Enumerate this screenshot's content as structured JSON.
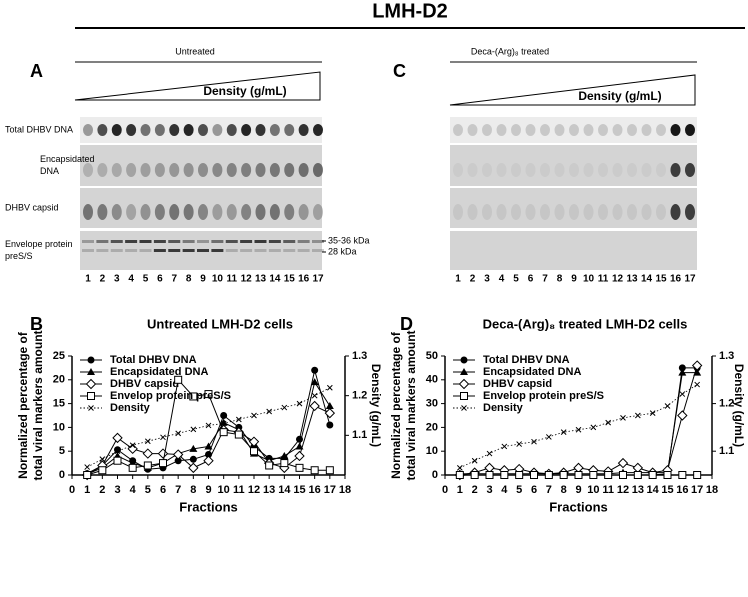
{
  "title": "LMH-D2",
  "blots": [
    {
      "panel": "A",
      "title": "Untreated",
      "wedge_label": "Density (g/mL)",
      "rows": [
        [
          "Total DHBV DNA"
        ],
        [
          "Encapsidated",
          "DNA"
        ],
        [
          "DHBV capsid"
        ],
        [
          "Envelope protein",
          "preS/S"
        ]
      ],
      "size_markers": [
        "35-36 kDa",
        "28 kDa"
      ],
      "lanes": [
        1,
        2,
        3,
        4,
        5,
        6,
        7,
        8,
        9,
        10,
        11,
        12,
        13,
        14,
        15,
        16,
        17
      ]
    },
    {
      "panel": "C",
      "title": "Deca-(Arg)₈ treated",
      "wedge_label": "Density (g/mL)",
      "lanes": [
        1,
        2,
        3,
        4,
        5,
        6,
        7,
        8,
        9,
        10,
        11,
        12,
        13,
        14,
        15,
        16,
        17
      ]
    }
  ],
  "chart_data": [
    {
      "type": "line",
      "panel": "B",
      "title": "Untreated LMH-D2 cells",
      "xlabel": "Fractions",
      "ylabel": [
        "Normalized percentage of",
        "total viral markers amount"
      ],
      "y2label": "Density (g/mL)",
      "x": [
        1,
        2,
        3,
        4,
        5,
        6,
        7,
        8,
        9,
        10,
        11,
        12,
        13,
        14,
        15,
        16,
        17
      ],
      "xlim": [
        0,
        18
      ],
      "xticks": [
        0,
        1,
        2,
        3,
        4,
        5,
        6,
        7,
        8,
        9,
        10,
        11,
        12,
        13,
        14,
        15,
        16,
        17,
        18
      ],
      "ylim": [
        0,
        25
      ],
      "yticks": [
        0,
        5,
        10,
        15,
        20,
        25
      ],
      "y2lim": [
        1.0,
        1.3
      ],
      "y2ticks": [
        1.1,
        1.2,
        1.3
      ],
      "legend": "upper left",
      "grid": false,
      "series": [
        {
          "name": "Total DHBV DNA",
          "color": "#000000",
          "marker": "circle",
          "dash": "solid",
          "values": [
            0.3,
            2,
            5.3,
            3,
            1.2,
            1.5,
            3,
            3.3,
            4.3,
            12.5,
            10,
            6,
            3.5,
            3.5,
            7.5,
            22,
            10.5
          ]
        },
        {
          "name": "Encapsidated DNA",
          "color": "#000000",
          "marker": "triangle",
          "dash": "solid",
          "values": [
            0.2,
            1.5,
            4,
            2.5,
            1.5,
            2.5,
            4.5,
            5.5,
            6,
            11,
            9.5,
            4.5,
            3,
            4,
            6,
            19.5,
            14.5
          ]
        },
        {
          "name": "DHBV capsid",
          "color": "#000000",
          "marker": "diamond",
          "dash": "solid",
          "values": [
            0,
            2,
            7.8,
            5.5,
            4.5,
            4.5,
            4.3,
            1.5,
            3,
            9.5,
            9,
            7,
            2.5,
            1.5,
            4,
            14.5,
            13
          ]
        },
        {
          "name": "Envelop protein preS/S",
          "color": "#000000",
          "marker": "square",
          "dash": "solid",
          "values": [
            0,
            1,
            3,
            1.5,
            2,
            2.5,
            20,
            16.5,
            17,
            9,
            8.5,
            5,
            2,
            2.5,
            1.5,
            1,
            1
          ]
        },
        {
          "name": "Density",
          "color": "#000000",
          "marker": "x",
          "dash": "dotted",
          "axis": "y2",
          "values": [
            1.02,
            1.04,
            1.06,
            1.075,
            1.085,
            1.095,
            1.105,
            1.115,
            1.125,
            1.13,
            1.14,
            1.15,
            1.16,
            1.17,
            1.18,
            1.2,
            1.22
          ]
        }
      ]
    },
    {
      "type": "line",
      "panel": "D",
      "title": "Deca-(Arg)₈ treated LMH-D2 cells",
      "xlabel": "Fractions",
      "ylabel": [
        "Normalized percentage of",
        "total viral markers amount"
      ],
      "y2label": "Density (g/mL)",
      "x": [
        1,
        2,
        3,
        4,
        5,
        6,
        7,
        8,
        9,
        10,
        11,
        12,
        13,
        14,
        15,
        16,
        17
      ],
      "xlim": [
        0,
        18
      ],
      "xticks": [
        0,
        1,
        2,
        3,
        4,
        5,
        6,
        7,
        8,
        9,
        10,
        11,
        12,
        13,
        14,
        15,
        16,
        17,
        18
      ],
      "ylim": [
        0,
        50
      ],
      "yticks": [
        0,
        10,
        20,
        30,
        40,
        50
      ],
      "y2lim": [
        1.05,
        1.3
      ],
      "y2ticks": [
        1.1,
        1.2,
        1.3
      ],
      "legend": "upper left",
      "grid": false,
      "series": [
        {
          "name": "Total DHBV DNA",
          "color": "#000000",
          "marker": "circle",
          "dash": "solid",
          "values": [
            0,
            0,
            0,
            0,
            0,
            0,
            0,
            0,
            0,
            0,
            0,
            0,
            0,
            0,
            0.5,
            45,
            45
          ]
        },
        {
          "name": "Encapsidated DNA",
          "color": "#000000",
          "marker": "triangle",
          "dash": "solid",
          "values": [
            0.5,
            0.5,
            0.5,
            0.5,
            0.5,
            0.5,
            0.5,
            0.5,
            0.5,
            0.5,
            0.5,
            1,
            1,
            1,
            1,
            43,
            43
          ]
        },
        {
          "name": "DHBV capsid",
          "color": "#000000",
          "marker": "diamond",
          "dash": "solid",
          "values": [
            0,
            1,
            3,
            2,
            2.5,
            1,
            0.5,
            1,
            3,
            2,
            1.5,
            5,
            3,
            1,
            2,
            25,
            46
          ]
        },
        {
          "name": "Envelop protein preS/S",
          "color": "#000000",
          "marker": "square",
          "dash": "solid",
          "values": [
            0,
            0,
            0,
            0,
            0,
            0,
            0,
            0,
            0,
            0,
            0,
            0,
            0,
            0,
            0,
            0,
            0
          ]
        },
        {
          "name": "Density",
          "color": "#000000",
          "marker": "x",
          "dash": "dotted",
          "axis": "y2",
          "values": [
            1.065,
            1.08,
            1.095,
            1.11,
            1.115,
            1.12,
            1.13,
            1.14,
            1.145,
            1.15,
            1.16,
            1.17,
            1.175,
            1.18,
            1.195,
            1.22,
            1.24
          ]
        }
      ]
    }
  ]
}
